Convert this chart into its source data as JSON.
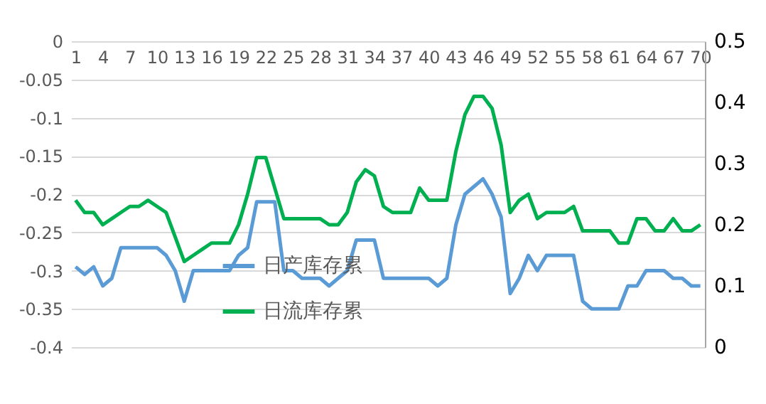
{
  "chart_data": {
    "type": "line",
    "categories": [
      "1",
      null,
      null,
      "4",
      null,
      null,
      "7",
      null,
      null,
      "10",
      null,
      null,
      "13",
      null,
      null,
      "16",
      null,
      null,
      "19",
      null,
      null,
      "22",
      null,
      null,
      "25",
      null,
      null,
      "28",
      null,
      null,
      "31",
      null,
      null,
      "34",
      null,
      null,
      "37",
      null,
      null,
      "40",
      null,
      null,
      "43",
      null,
      null,
      "46",
      null,
      null,
      "49",
      null,
      null,
      "52",
      null,
      null,
      "55",
      null,
      null,
      "58",
      null,
      null,
      "61",
      null,
      null,
      "64",
      null,
      null,
      "67",
      null,
      null,
      "70"
    ],
    "series": [
      {
        "name": "日产库存累",
        "color": "#5b9bd5",
        "axis": "y",
        "values": [
          -0.295,
          -0.305,
          -0.295,
          -0.32,
          -0.31,
          -0.27,
          -0.27,
          -0.27,
          -0.27,
          -0.27,
          -0.28,
          -0.3,
          -0.34,
          -0.3,
          -0.3,
          -0.3,
          -0.3,
          -0.3,
          -0.28,
          -0.27,
          -0.21,
          -0.21,
          -0.21,
          -0.3,
          -0.3,
          -0.31,
          -0.31,
          -0.31,
          -0.32,
          -0.31,
          -0.3,
          -0.26,
          -0.26,
          -0.26,
          -0.31,
          -0.31,
          -0.31,
          -0.31,
          -0.31,
          -0.31,
          -0.32,
          -0.31,
          -0.24,
          -0.2,
          -0.19,
          -0.18,
          -0.2,
          -0.23,
          -0.33,
          -0.31,
          -0.28,
          -0.3,
          -0.28,
          -0.28,
          -0.28,
          -0.28,
          -0.34,
          -0.35,
          -0.35,
          -0.35,
          -0.35,
          -0.32,
          -0.32,
          -0.3,
          -0.3,
          -0.3,
          -0.31,
          -0.31,
          -0.32,
          -0.32
        ]
      },
      {
        "name": "日流库存累",
        "color": "#00b050",
        "axis": "y2",
        "values": [
          0.24,
          0.22,
          0.22,
          0.2,
          0.21,
          0.22,
          0.23,
          0.23,
          0.24,
          0.23,
          0.22,
          0.18,
          0.14,
          0.15,
          0.16,
          0.17,
          0.17,
          0.17,
          0.2,
          0.25,
          0.31,
          0.31,
          0.26,
          0.21,
          0.21,
          0.21,
          0.21,
          0.21,
          0.2,
          0.2,
          0.22,
          0.27,
          0.29,
          0.28,
          0.23,
          0.22,
          0.22,
          0.22,
          0.26,
          0.24,
          0.24,
          0.24,
          0.32,
          0.38,
          0.41,
          0.41,
          0.39,
          0.33,
          0.22,
          0.24,
          0.25,
          0.21,
          0.22,
          0.22,
          0.22,
          0.23,
          0.19,
          0.19,
          0.19,
          0.19,
          0.17,
          0.17,
          0.21,
          0.21,
          0.19,
          0.19,
          0.21,
          0.19,
          0.19,
          0.2
        ]
      }
    ],
    "ylim": [
      -0.4,
      0
    ],
    "yticks": [
      0,
      -0.05,
      -0.1,
      -0.15,
      -0.2,
      -0.25,
      -0.3,
      -0.35,
      -0.4
    ],
    "y2lim": [
      0,
      0.5
    ],
    "y2ticks": [
      0,
      0.1,
      0.2,
      0.3,
      0.4,
      0.5
    ],
    "grid": "y",
    "legend": "bottom left",
    "line_style": "solid",
    "marker": "none"
  }
}
